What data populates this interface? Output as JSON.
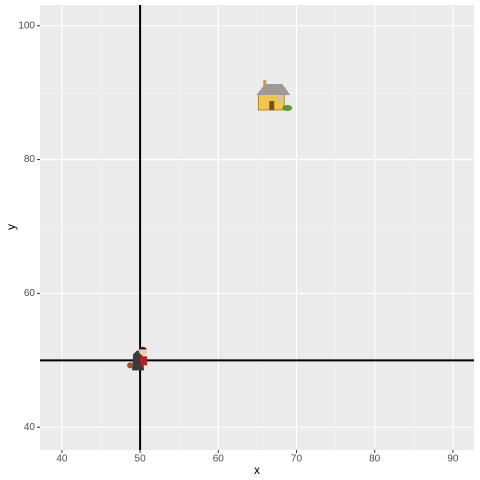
{
  "chart_data": {
    "type": "scatter",
    "x_label": "x",
    "y_label": "y",
    "x": [
      50,
      66.9
    ],
    "y": [
      50,
      88.9
    ],
    "xlim": [
      37.2,
      92.7
    ],
    "ylim": [
      36.6,
      103.1
    ],
    "xticks": [
      40,
      50,
      60,
      70,
      80,
      90
    ],
    "yticks": [
      40,
      60,
      80,
      100
    ],
    "vline": 50,
    "hline": 50,
    "grid": true,
    "minor_grid": true
  }
}
